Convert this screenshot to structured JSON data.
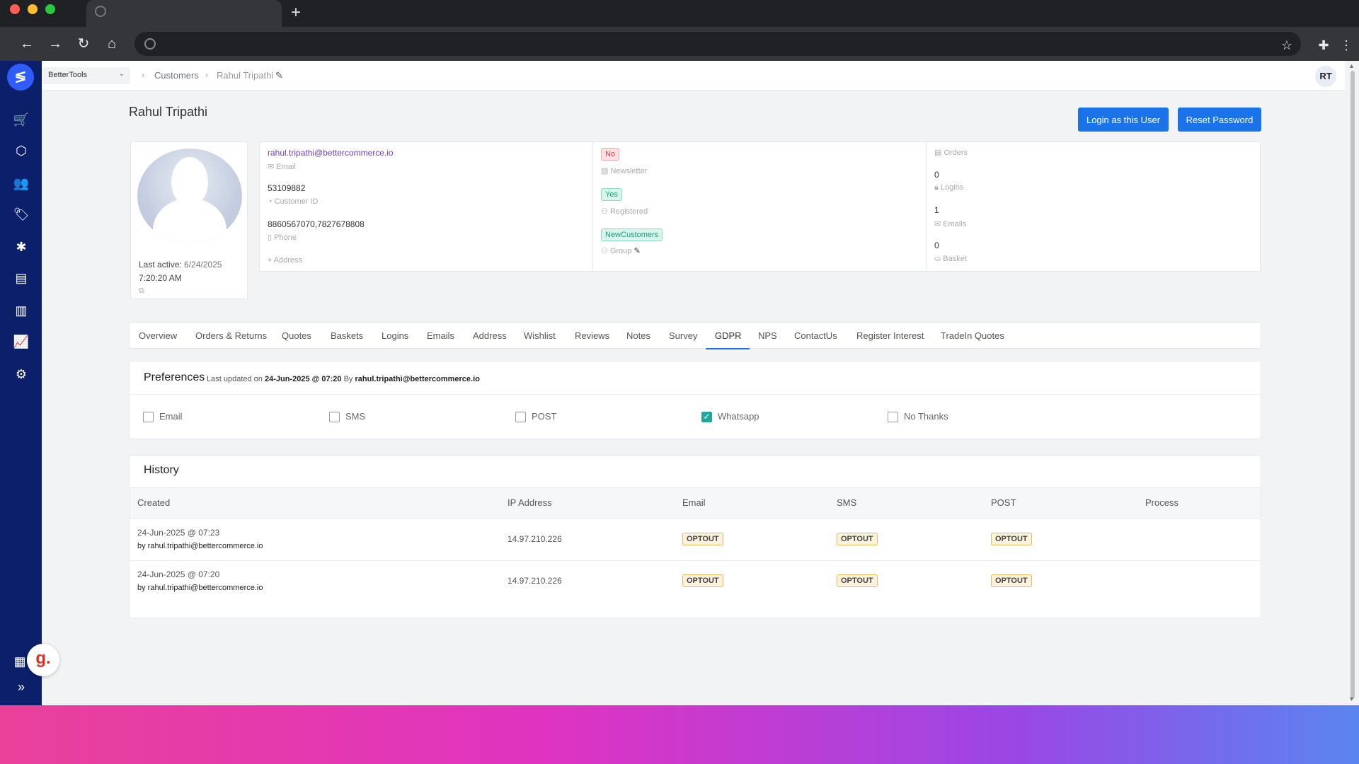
{
  "app": {
    "store_selector": "BetterTools",
    "user_initials": "RT"
  },
  "breadcrumb": {
    "customers": "Customers",
    "current": "Rahul Tripathi"
  },
  "customer": {
    "name": "Rahul Tripathi",
    "last_active_label": "Last active:",
    "last_active_date": "6/24/2025",
    "last_active_time": "7:20:20 AM",
    "email": "rahul.tripathi@bettercommerce.io",
    "email_label": "Email",
    "customer_id": "53109882",
    "customer_id_label": "Customer ID",
    "phone": "8860567070,7827678808",
    "phone_label": "Phone",
    "address_label": "Address",
    "newsletter": "No",
    "newsletter_label": "Newsletter",
    "registered": "Yes",
    "registered_label": "Registered",
    "group": "NewCustomers",
    "group_label": "Group",
    "orders_label": "Orders",
    "logins_value": "0",
    "logins_label": "Logins",
    "emails_value": "1",
    "emails_label": "Emails",
    "basket_value": "0",
    "basket_label": "Basket"
  },
  "actions": {
    "login_as_user": "Login as this User",
    "reset_password": "Reset Password"
  },
  "tabs": [
    "Overview",
    "Orders & Returns",
    "Quotes",
    "Baskets",
    "Logins",
    "Emails",
    "Address",
    "Wishlist",
    "Reviews",
    "Notes",
    "Survey",
    "GDPR",
    "NPS",
    "ContactUs",
    "Register Interest",
    "TradeIn Quotes"
  ],
  "active_tab": "GDPR",
  "preferences": {
    "title": "Preferences",
    "updated_prefix": "Last updated on",
    "updated_date": "24-Jun-2025 @ 07:20",
    "updated_by_prefix": "By",
    "updated_by": "rahul.tripathi@bettercommerce.io",
    "options": [
      {
        "label": "Email",
        "checked": false
      },
      {
        "label": "SMS",
        "checked": false
      },
      {
        "label": "POST",
        "checked": false
      },
      {
        "label": "Whatsapp",
        "checked": true
      },
      {
        "label": "No Thanks",
        "checked": false
      }
    ]
  },
  "history": {
    "title": "History",
    "columns": [
      "Created",
      "IP Address",
      "Email",
      "SMS",
      "POST",
      "Process"
    ],
    "rows": [
      {
        "created": "24-Jun-2025 @ 07:23",
        "by": "by rahul.tripathi@bettercommerce.io",
        "ip": "14.97.210.226",
        "email": "OPTOUT",
        "sms": "OPTOUT",
        "post": "OPTOUT"
      },
      {
        "created": "24-Jun-2025 @ 07:20",
        "by": "by rahul.tripathi@bettercommerce.io",
        "ip": "14.97.210.226",
        "email": "OPTOUT",
        "sms": "OPTOUT",
        "post": "OPTOUT"
      }
    ]
  },
  "widget": {
    "letter": "g."
  }
}
